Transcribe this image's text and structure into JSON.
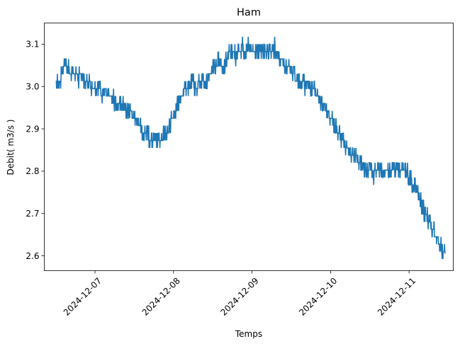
{
  "chart_data": {
    "type": "line",
    "title": "Ham",
    "xlabel": "Temps",
    "ylabel": "Debit( m3/s )",
    "x_ticks": [
      "2024-12-07",
      "2024-12-08",
      "2024-12-09",
      "2024-12-10",
      "2024-12-11"
    ],
    "y_ticks": [
      "2.6",
      "2.7",
      "2.8",
      "2.9",
      "3.0",
      "3.1"
    ],
    "xlim": [
      "2024-12-06T08:30",
      "2024-12-11T13:30"
    ],
    "ylim": [
      2.565,
      3.15
    ],
    "grid": false,
    "legend": "none",
    "series": [
      {
        "color": "#1f77b4",
        "points": [
          [
            "2024-12-06T12:00",
            3.017
          ],
          [
            "2024-12-06T13:00",
            3.0
          ],
          [
            "2024-12-06T14:00",
            3.035
          ],
          [
            "2024-12-06T15:00",
            3.06
          ],
          [
            "2024-12-06T16:00",
            3.035
          ],
          [
            "2024-12-06T17:00",
            3.02
          ],
          [
            "2024-12-06T18:00",
            3.035
          ],
          [
            "2024-12-06T19:00",
            3.017
          ],
          [
            "2024-12-06T20:00",
            3.035
          ],
          [
            "2024-12-06T21:00",
            3.0
          ],
          [
            "2024-12-06T22:00",
            3.017
          ],
          [
            "2024-12-06T23:00",
            2.99
          ],
          [
            "2024-12-07T00:00",
            2.985
          ],
          [
            "2024-12-07T01:00",
            3.0
          ],
          [
            "2024-12-07T02:00",
            2.98
          ],
          [
            "2024-12-07T03:00",
            2.99
          ],
          [
            "2024-12-07T04:00",
            2.975
          ],
          [
            "2024-12-07T05:00",
            2.98
          ],
          [
            "2024-12-07T06:00",
            2.96
          ],
          [
            "2024-12-07T07:00",
            2.965
          ],
          [
            "2024-12-07T08:00",
            2.955
          ],
          [
            "2024-12-07T09:00",
            2.96
          ],
          [
            "2024-12-07T10:00",
            2.93
          ],
          [
            "2024-12-07T11:00",
            2.935
          ],
          [
            "2024-12-07T12:00",
            2.915
          ],
          [
            "2024-12-07T13:00",
            2.92
          ],
          [
            "2024-12-07T14:00",
            2.9
          ],
          [
            "2024-12-07T15:00",
            2.88
          ],
          [
            "2024-12-07T16:00",
            2.885
          ],
          [
            "2024-12-07T17:00",
            2.87
          ],
          [
            "2024-12-07T18:00",
            2.875
          ],
          [
            "2024-12-07T19:00",
            2.865
          ],
          [
            "2024-12-07T20:00",
            2.87
          ],
          [
            "2024-12-07T21:00",
            2.88
          ],
          [
            "2024-12-07T22:00",
            2.88
          ],
          [
            "2024-12-07T23:00",
            2.91
          ],
          [
            "2024-12-08T00:00",
            2.935
          ],
          [
            "2024-12-08T01:00",
            2.95
          ],
          [
            "2024-12-08T02:00",
            2.97
          ],
          [
            "2024-12-08T03:00",
            2.985
          ],
          [
            "2024-12-08T04:00",
            2.995
          ],
          [
            "2024-12-08T05:00",
            3.0
          ],
          [
            "2024-12-08T06:00",
            3.005
          ],
          [
            "2024-12-08T07:00",
            2.995
          ],
          [
            "2024-12-08T08:00",
            3.01
          ],
          [
            "2024-12-08T09:00",
            3.02
          ],
          [
            "2024-12-08T10:00",
            3.0
          ],
          [
            "2024-12-08T11:00",
            3.03
          ],
          [
            "2024-12-08T12:00",
            3.04
          ],
          [
            "2024-12-08T13:00",
            3.05
          ],
          [
            "2024-12-08T14:00",
            3.065
          ],
          [
            "2024-12-08T15:00",
            3.045
          ],
          [
            "2024-12-08T16:00",
            3.055
          ],
          [
            "2024-12-08T17:00",
            3.075
          ],
          [
            "2024-12-08T18:00",
            3.08
          ],
          [
            "2024-12-08T19:00",
            3.07
          ],
          [
            "2024-12-08T20:00",
            3.085
          ],
          [
            "2024-12-08T21:00",
            3.09
          ],
          [
            "2024-12-08T22:00",
            3.085
          ],
          [
            "2024-12-08T23:00",
            3.09
          ],
          [
            "2024-12-09T00:00",
            3.08
          ],
          [
            "2024-12-09T01:00",
            3.075
          ],
          [
            "2024-12-09T02:00",
            3.08
          ],
          [
            "2024-12-09T03:00",
            3.085
          ],
          [
            "2024-12-09T04:00",
            3.075
          ],
          [
            "2024-12-09T05:00",
            3.07
          ],
          [
            "2024-12-09T06:00",
            3.08
          ],
          [
            "2024-12-09T07:00",
            3.09
          ],
          [
            "2024-12-09T08:00",
            3.07
          ],
          [
            "2024-12-09T09:00",
            3.06
          ],
          [
            "2024-12-09T10:00",
            3.05
          ],
          [
            "2024-12-09T11:00",
            3.045
          ],
          [
            "2024-12-09T12:00",
            3.035
          ],
          [
            "2024-12-09T13:00",
            3.02
          ],
          [
            "2024-12-09T14:00",
            3.01
          ],
          [
            "2024-12-09T15:00",
            3.015
          ],
          [
            "2024-12-09T16:00",
            3.0
          ],
          [
            "2024-12-09T17:00",
            3.005
          ],
          [
            "2024-12-09T18:00",
            2.995
          ],
          [
            "2024-12-09T19:00",
            2.99
          ],
          [
            "2024-12-09T20:00",
            2.975
          ],
          [
            "2024-12-09T21:00",
            2.96
          ],
          [
            "2024-12-09T22:00",
            2.955
          ],
          [
            "2024-12-09T23:00",
            2.94
          ],
          [
            "2024-12-10T00:00",
            2.925
          ],
          [
            "2024-12-10T01:00",
            2.91
          ],
          [
            "2024-12-10T02:00",
            2.895
          ],
          [
            "2024-12-10T03:00",
            2.88
          ],
          [
            "2024-12-10T04:00",
            2.865
          ],
          [
            "2024-12-10T05:00",
            2.85
          ],
          [
            "2024-12-10T06:00",
            2.845
          ],
          [
            "2024-12-10T07:00",
            2.835
          ],
          [
            "2024-12-10T08:00",
            2.83
          ],
          [
            "2024-12-10T09:00",
            2.82
          ],
          [
            "2024-12-10T10:00",
            2.81
          ],
          [
            "2024-12-10T11:00",
            2.8
          ],
          [
            "2024-12-10T12:00",
            2.795
          ],
          [
            "2024-12-10T13:00",
            2.79
          ],
          [
            "2024-12-10T14:00",
            2.795
          ],
          [
            "2024-12-10T15:00",
            2.8
          ],
          [
            "2024-12-10T16:00",
            2.79
          ],
          [
            "2024-12-10T17:00",
            2.8
          ],
          [
            "2024-12-10T18:00",
            2.805
          ],
          [
            "2024-12-10T19:00",
            2.795
          ],
          [
            "2024-12-10T20:00",
            2.8
          ],
          [
            "2024-12-10T21:00",
            2.795
          ],
          [
            "2024-12-10T22:00",
            2.805
          ],
          [
            "2024-12-10T23:00",
            2.8
          ],
          [
            "2024-12-11T00:00",
            2.785
          ],
          [
            "2024-12-11T01:00",
            2.77
          ],
          [
            "2024-12-11T02:00",
            2.755
          ],
          [
            "2024-12-11T03:00",
            2.735
          ],
          [
            "2024-12-11T04:00",
            2.715
          ],
          [
            "2024-12-11T05:00",
            2.695
          ],
          [
            "2024-12-11T06:00",
            2.68
          ],
          [
            "2024-12-11T07:00",
            2.665
          ],
          [
            "2024-12-11T08:00",
            2.645
          ],
          [
            "2024-12-11T09:00",
            2.635
          ],
          [
            "2024-12-11T10:00",
            2.615
          ],
          [
            "2024-12-11T11:00",
            2.605
          ]
        ]
      }
    ]
  }
}
